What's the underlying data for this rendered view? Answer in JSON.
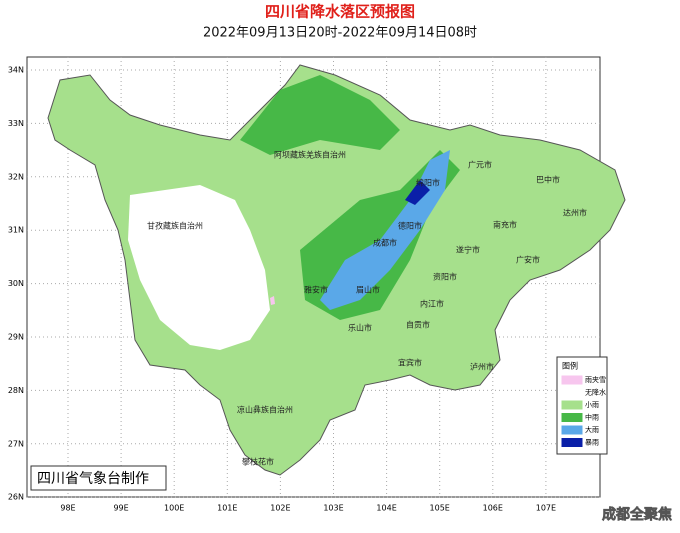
{
  "header": {
    "title": "四川省降水落区预报图",
    "subtitle": "2022年09月13日20时-2022年09月14日08时"
  },
  "axes": {
    "lat_labels": [
      "34N",
      "33N",
      "32N",
      "31N",
      "30N",
      "29N",
      "28N",
      "27N",
      "26N"
    ],
    "lon_labels": [
      "98E",
      "99E",
      "100E",
      "101E",
      "102E",
      "103E",
      "104E",
      "105E",
      "106E",
      "107E"
    ]
  },
  "regions": [
    "阿坝藏族羌族自治州",
    "甘孜藏族自治州",
    "凉山彝族自治州",
    "攀枝花市",
    "雅安市",
    "成都市",
    "德阳市",
    "绵阳市",
    "广元市",
    "巴中市",
    "达州市",
    "南充市",
    "遂宁市",
    "广安市",
    "资阳市",
    "眉山市",
    "乐山市",
    "内江市",
    "自贡市",
    "宜宾市",
    "泸州市"
  ],
  "legend": {
    "title": "图例",
    "items": [
      {
        "label": "雨夹雪",
        "color": "#f7c6ee"
      },
      {
        "label": "无降水",
        "color": "#ffffff"
      },
      {
        "label": "小雨",
        "color": "#a6e08c"
      },
      {
        "label": "中雨",
        "color": "#47b847"
      },
      {
        "label": "大雨",
        "color": "#5aa8e8"
      },
      {
        "label": "暴雨",
        "color": "#0a1fa8"
      }
    ]
  },
  "footer": "四川省气象台制作",
  "watermark": "成都全聚焦"
}
